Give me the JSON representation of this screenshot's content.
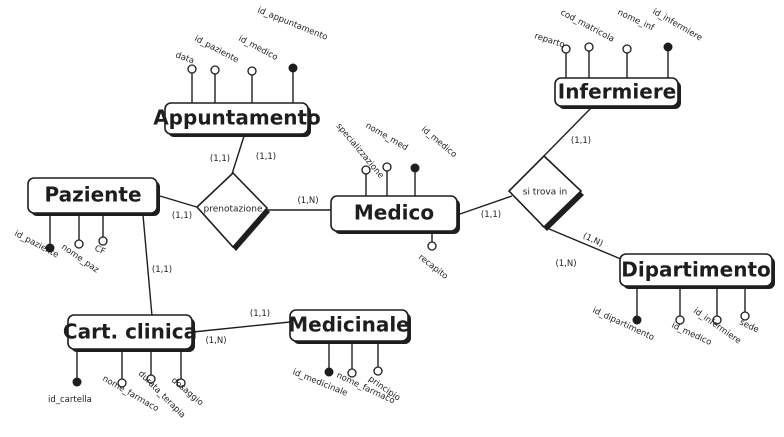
{
  "entities": {
    "appuntamento": "Appuntamento",
    "paziente": "Paziente",
    "medico": "Medico",
    "infermiere": "Infermiere",
    "dipartimento": "Dipartimento",
    "cartella": "Cart. clinica",
    "medicinale": "Medicinale"
  },
  "relationships": {
    "prenotazione": "prenotazione",
    "si_trova_in": "si trova in"
  },
  "attributes": {
    "appuntamento": {
      "data": "data",
      "id_paziente": "id_paziente",
      "id_medico": "id_medico",
      "id_appuntamento": "id_appuntamento"
    },
    "infermiere": {
      "reparto": "reparto",
      "cod_matricola": "cod_matricola",
      "nome_inf": "nome_inf",
      "id_infermiere": "id_infermiere"
    },
    "medico": {
      "specializzazione": "specializzazione",
      "nome_med": "nome_med",
      "id_medico": "id_medico",
      "recapito": "recapito"
    },
    "paziente": {
      "id_paziente": "id_paziente",
      "nome_paz": "nome_paz",
      "cf": "CF"
    },
    "dipartimento": {
      "id_dipartimento": "id_dipartimento",
      "id_medico": "id_medico",
      "id_infermiere": "id_infermiere",
      "sede": "sede"
    },
    "cartella": {
      "id_cartella": "id_cartella",
      "nome_farmaco": "nome_farmaco",
      "durata_terapia": "durata_terapia",
      "dosaggio": "dosaggio"
    },
    "medicinale": {
      "id_medicinale": "id_medicinale",
      "nome_farmaco": "nome_farmaco",
      "principio": "principio"
    }
  },
  "cardinalities": {
    "appuntamento_prenotazione": "(1,1)",
    "prenotazione_appuntamento": "(1,1)",
    "paziente_prenotazione": "(1,1)",
    "prenotazione_medico": "(1,N)",
    "infermiere_sitrova": "(1,1)",
    "medico_sitrova": "(1,1)",
    "sitrova_dipartimento_1": "(1,N)",
    "sitrova_dipartimento_2": "(1,N)",
    "paziente_cartella": "(1,1)",
    "medicinale_link": "(1,1)",
    "cartella_link": "(1,N)"
  },
  "colors": {
    "ink": "#1e1e1e",
    "background": "#ffffff"
  }
}
